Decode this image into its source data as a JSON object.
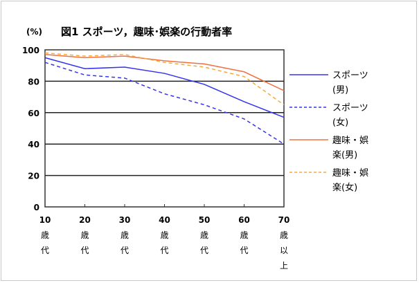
{
  "chart_data": {
    "type": "line",
    "title": "図1 スポーツ，趣味･娯楽の行動者率",
    "ylabel": "(%)",
    "xlabel": "",
    "ylim": [
      0,
      100
    ],
    "yticks": [
      0,
      20,
      40,
      60,
      80,
      100
    ],
    "grid": true,
    "legend": "right",
    "categories": [
      [
        "10",
        "歳",
        "代"
      ],
      [
        "20",
        "歳",
        "代"
      ],
      [
        "30",
        "歳",
        "代"
      ],
      [
        "40",
        "歳",
        "代"
      ],
      [
        "50",
        "歳",
        "代"
      ],
      [
        "60",
        "歳",
        "代"
      ],
      [
        "70",
        "歳",
        "以",
        "上"
      ]
    ],
    "series": [
      {
        "name": [
          "スポーツ",
          "(男)"
        ],
        "color": "#3333ee",
        "dash": false,
        "values": [
          95,
          88,
          89,
          85,
          78,
          67,
          57
        ]
      },
      {
        "name": [
          "スポーツ",
          "(女)"
        ],
        "color": "#3333ee",
        "dash": true,
        "values": [
          92,
          84,
          82,
          72,
          65,
          56,
          40
        ]
      },
      {
        "name": [
          "趣味・娯",
          "楽(男)"
        ],
        "color": "#f07040",
        "dash": false,
        "values": [
          97,
          95,
          96,
          93,
          91,
          86,
          74
        ]
      },
      {
        "name": [
          "趣味・娯",
          "楽(女)"
        ],
        "color": "#f5a840",
        "dash": true,
        "values": [
          98,
          96,
          97,
          92,
          89,
          83,
          65
        ]
      }
    ]
  }
}
